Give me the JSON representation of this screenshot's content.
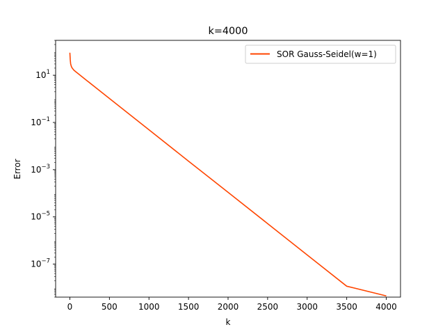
{
  "chart_data": {
    "type": "line",
    "title": "k=4000",
    "xlabel": "k",
    "ylabel": "Error",
    "xscale": "linear",
    "yscale": "log",
    "xlim": [
      -180,
      4180
    ],
    "ylim": [
      4e-09,
      300.0
    ],
    "xticks": [
      0,
      500,
      1000,
      1500,
      2000,
      2500,
      3000,
      3500,
      4000
    ],
    "xtick_labels": [
      "0",
      "500",
      "1000",
      "1500",
      "2000",
      "2500",
      "3000",
      "3500",
      "4000"
    ],
    "yticks": [
      1e-07,
      1e-05,
      0.001,
      0.1,
      10.0
    ],
    "ytick_labels": [
      {
        "base": "10",
        "exp": "−7"
      },
      {
        "base": "10",
        "exp": "−5"
      },
      {
        "base": "10",
        "exp": "−3"
      },
      {
        "base": "10",
        "exp": "−1"
      },
      {
        "base": "10",
        "exp": "1"
      }
    ],
    "grid": false,
    "legend_position": "upper right",
    "series": [
      {
        "name": "SOR Gauss-Seidel(w=1)",
        "color": "#ff4500",
        "x": [
          0,
          5,
          10,
          20,
          30,
          50,
          75,
          100,
          200,
          500,
          1000,
          1500,
          2000,
          2500,
          3000,
          3500,
          4000
        ],
        "y": [
          90,
          45,
          30,
          23,
          20,
          16.5,
          14.0,
          12.0,
          6.5,
          1.04,
          0.049,
          0.0023,
          0.00011,
          5.2e-06,
          2.45e-07,
          1.16e-08,
          4.5e-09
        ]
      }
    ]
  }
}
